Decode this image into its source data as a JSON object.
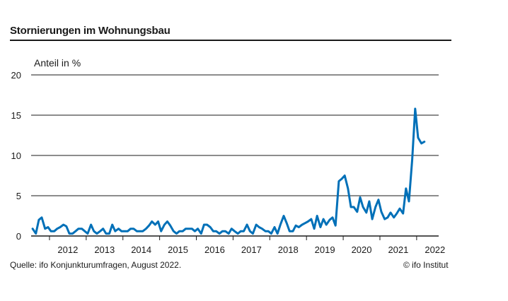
{
  "header": {
    "title": "Stornierungen im Wohnungsbau"
  },
  "footer": {
    "source": "Quelle: ifo Konjunkturumfragen, August 2022.",
    "credit": "© ifo Institut"
  },
  "colors": {
    "line": "#0070b8",
    "grid": "#1a1a1a",
    "text": "#1a1a1a"
  },
  "chart_data": {
    "type": "line",
    "title": "Stornierungen im Wohnungsbau",
    "ylabel": "Anteil in %",
    "xlabel": "",
    "ylim": [
      0,
      20
    ],
    "yticks": [
      0,
      5,
      10,
      15,
      20
    ],
    "xlim": [
      2011.5,
      2022.6
    ],
    "xticks": [
      2012,
      2013,
      2014,
      2015,
      2016,
      2017,
      2018,
      2019,
      2020,
      2021,
      2022
    ],
    "xtick_labels": [
      "2012",
      "2013",
      "2014",
      "2015",
      "2016",
      "2017",
      "2018",
      "2019",
      "2020",
      "2021",
      "2022"
    ],
    "grid": "horizontal",
    "series": [
      {
        "x": [
          2011.54,
          2011.63,
          2011.71,
          2011.79,
          2011.88,
          2011.96,
          2012.04,
          2012.13,
          2012.21,
          2012.29,
          2012.38,
          2012.46,
          2012.54,
          2012.63,
          2012.71,
          2012.79,
          2012.88,
          2012.96,
          2013.04,
          2013.13,
          2013.21,
          2013.29,
          2013.38,
          2013.46,
          2013.54,
          2013.63,
          2013.71,
          2013.79,
          2013.88,
          2013.96,
          2014.04,
          2014.13,
          2014.21,
          2014.29,
          2014.38,
          2014.46,
          2014.54,
          2014.63,
          2014.71,
          2014.79,
          2014.88,
          2014.96,
          2015.04,
          2015.13,
          2015.21,
          2015.29,
          2015.38,
          2015.46,
          2015.54,
          2015.63,
          2015.71,
          2015.79,
          2015.88,
          2015.96,
          2016.04,
          2016.13,
          2016.21,
          2016.29,
          2016.38,
          2016.46,
          2016.54,
          2016.63,
          2016.71,
          2016.79,
          2016.88,
          2016.96,
          2017.04,
          2017.13,
          2017.21,
          2017.29,
          2017.38,
          2017.46,
          2017.54,
          2017.63,
          2017.71,
          2017.79,
          2017.88,
          2017.96,
          2018.04,
          2018.13,
          2018.21,
          2018.29,
          2018.38,
          2018.46,
          2018.54,
          2018.63,
          2018.71,
          2018.79,
          2018.88,
          2018.96,
          2019.04,
          2019.13,
          2019.21,
          2019.29,
          2019.38,
          2019.46,
          2019.54,
          2019.63,
          2019.71,
          2019.79,
          2019.88,
          2019.96,
          2020.04,
          2020.13,
          2020.21,
          2020.29,
          2020.38,
          2020.46,
          2020.54,
          2020.63,
          2020.71,
          2020.79,
          2020.88,
          2020.96,
          2021.04,
          2021.13,
          2021.21,
          2021.29,
          2021.38,
          2021.46,
          2021.54,
          2021.63,
          2021.71,
          2021.79,
          2021.88,
          2021.96,
          2022.04,
          2022.13,
          2022.21
        ],
        "values": [
          0.9,
          0.3,
          2.0,
          2.3,
          0.9,
          1.1,
          0.6,
          0.6,
          0.9,
          1.1,
          1.4,
          1.2,
          0.3,
          0.3,
          0.6,
          0.9,
          0.9,
          0.6,
          0.3,
          1.4,
          0.6,
          0.3,
          0.6,
          0.9,
          0.3,
          0.3,
          1.4,
          0.6,
          0.9,
          0.6,
          0.6,
          0.6,
          0.9,
          0.9,
          0.6,
          0.6,
          0.6,
          0.9,
          1.3,
          1.8,
          1.4,
          1.8,
          0.6,
          1.4,
          1.8,
          1.3,
          0.6,
          0.3,
          0.6,
          0.6,
          0.9,
          0.9,
          0.9,
          0.6,
          0.9,
          0.3,
          1.4,
          1.4,
          1.1,
          0.6,
          0.6,
          0.3,
          0.6,
          0.6,
          0.3,
          0.9,
          0.6,
          0.3,
          0.6,
          0.6,
          1.4,
          0.6,
          0.3,
          1.4,
          1.1,
          0.9,
          0.6,
          0.6,
          0.3,
          1.1,
          0.3,
          1.4,
          2.5,
          1.6,
          0.6,
          0.6,
          1.3,
          1.1,
          1.4,
          1.6,
          1.8,
          2.1,
          0.9,
          2.5,
          1.1,
          2.1,
          1.4,
          2.0,
          2.3,
          1.3,
          6.8,
          7.1,
          7.5,
          5.9,
          3.6,
          3.6,
          3.0,
          4.8,
          3.6,
          2.9,
          4.3,
          2.1,
          3.6,
          4.5,
          3.0,
          2.1,
          2.3,
          2.9,
          2.3,
          2.8,
          3.4,
          2.8,
          5.9,
          4.3,
          9.5,
          15.8,
          12.2,
          11.5,
          11.7
        ]
      }
    ]
  }
}
